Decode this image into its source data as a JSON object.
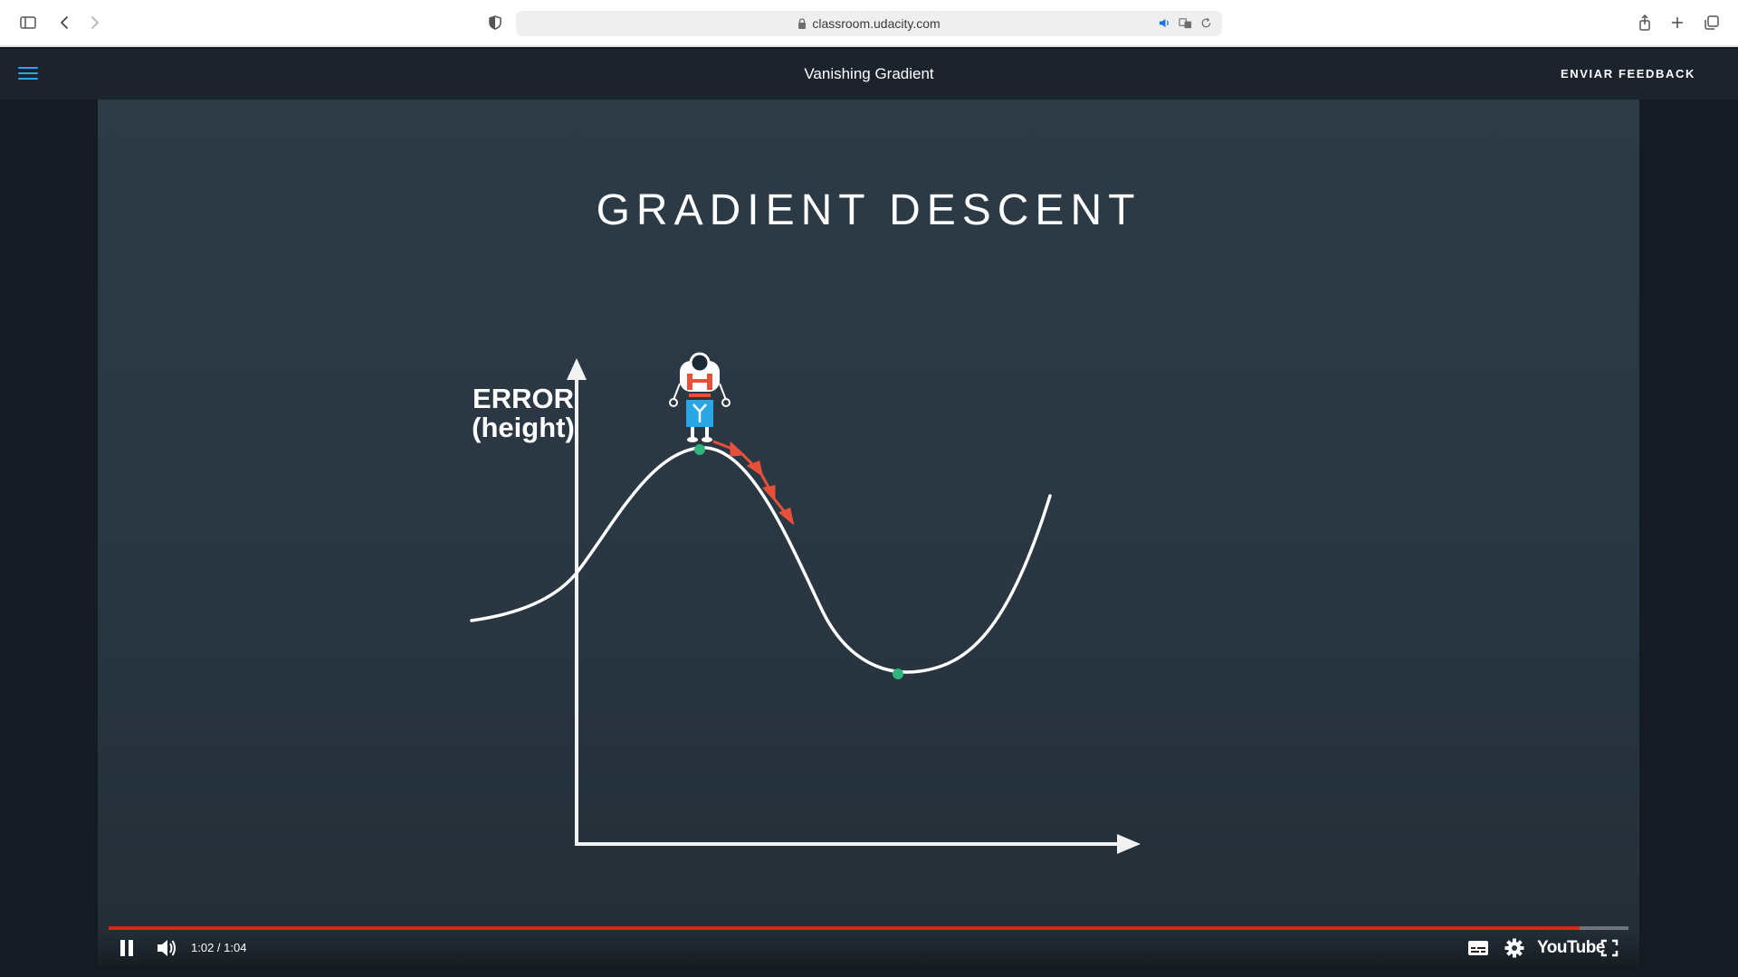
{
  "browser": {
    "url": "classroom.udacity.com"
  },
  "header": {
    "title": "Vanishing Gradient",
    "feedback_label": "ENVIAR FEEDBACK",
    "accent_color": "#2aa6e4"
  },
  "slide": {
    "title": "GRADIENT DESCENT",
    "y_axis_label_line1": "ERROR",
    "y_axis_label_line2": "(height)",
    "curve_color": "#ffffff",
    "point_color": "#2fb57c",
    "arrow_color": "#e8503a"
  },
  "player": {
    "time_current": "1:02",
    "time_separator": " / ",
    "time_total": "1:04",
    "progress": 0.968,
    "progress_color": "#e62117",
    "logo_text": "YouTube"
  }
}
